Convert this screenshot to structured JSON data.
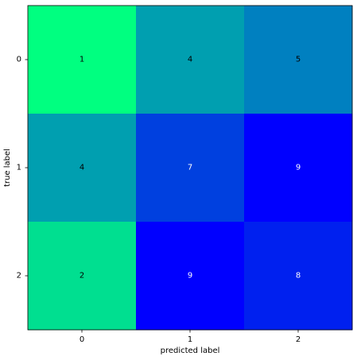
{
  "chart_data": {
    "type": "heatmap",
    "title": "",
    "xlabel": "predicted label",
    "ylabel": "true label",
    "x_categories": [
      "0",
      "1",
      "2"
    ],
    "y_categories": [
      "0",
      "1",
      "2"
    ],
    "values": [
      [
        1,
        4,
        5
      ],
      [
        4,
        7,
        9
      ],
      [
        2,
        9,
        8
      ]
    ],
    "colormap": "winter_r",
    "color_low": "#00ff80",
    "color_high": "#0000ff",
    "text_color_light_bg": "#000000",
    "text_color_dark_bg": "#ffffff",
    "grid": false,
    "legend": "none"
  }
}
